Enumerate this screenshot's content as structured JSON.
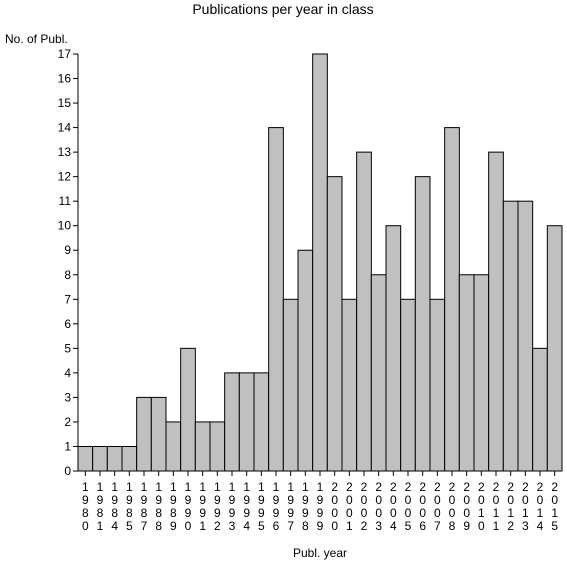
{
  "chart_data": {
    "type": "bar",
    "title": "Publications per year in class",
    "ylabel": "No. of Publ.",
    "xlabel": "Publ. year",
    "categories": [
      "1980",
      "1981",
      "1984",
      "1985",
      "1987",
      "1988",
      "1989",
      "1990",
      "1991",
      "1992",
      "1993",
      "1994",
      "1995",
      "1996",
      "1997",
      "1998",
      "1999",
      "2000",
      "2001",
      "2002",
      "2003",
      "2004",
      "2005",
      "2006",
      "2007",
      "2008",
      "2009",
      "2010",
      "2011",
      "2012",
      "2013",
      "2014",
      "2015"
    ],
    "values": [
      1,
      1,
      1,
      1,
      3,
      3,
      2,
      5,
      2,
      2,
      4,
      4,
      4,
      14,
      7,
      9,
      17,
      12,
      7,
      13,
      8,
      10,
      7,
      12,
      7,
      14,
      8,
      8,
      13,
      11,
      11,
      5,
      10
    ],
    "ylim": [
      0,
      17
    ],
    "yticks": [
      0,
      1,
      2,
      3,
      4,
      5,
      6,
      7,
      8,
      9,
      10,
      11,
      12,
      13,
      14,
      15,
      16,
      17
    ],
    "grid": false,
    "bar_color": "#c0c0c0",
    "edge_color": "#000000"
  }
}
